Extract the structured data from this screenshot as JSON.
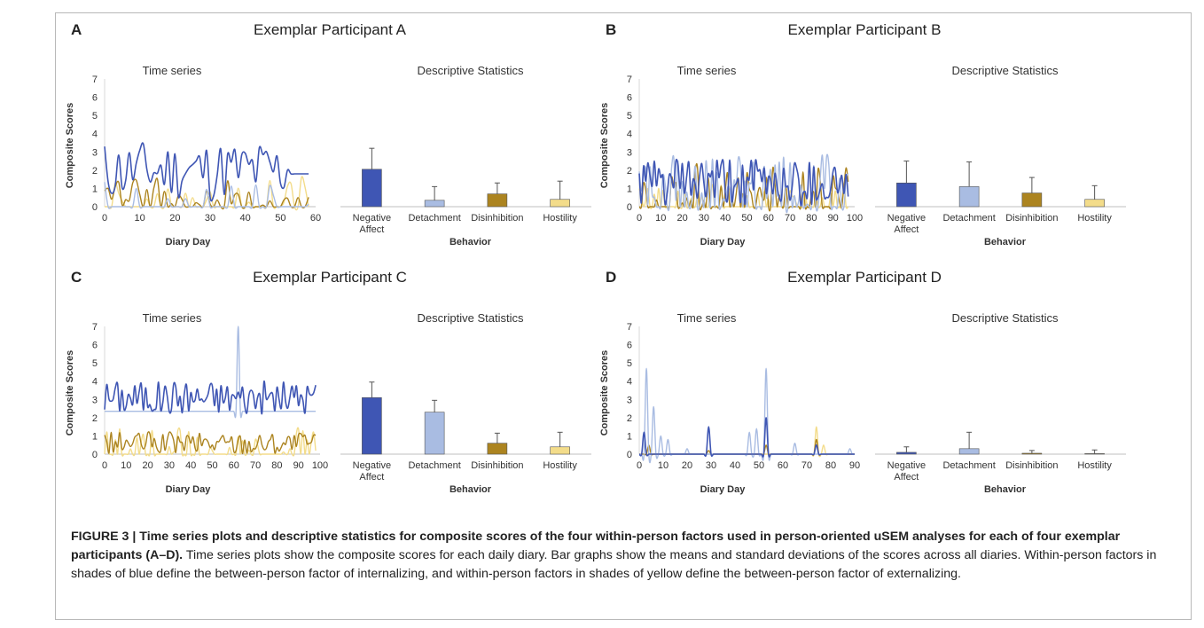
{
  "caption": {
    "label": "FIGURE 3 | Time series plots and descriptive statistics for composite scores of the four within-person factors used in person-oriented uSEM analyses for each of four exemplar participants (A–D).",
    "text": "Time series plots show the composite scores for each daily diary. Bar graphs show the means and standard deviations of the scores across all diaries. Within-person factors in shades of blue define the between-person factor of internalizing, and within-person factors in shades of yellow define the between-person factor of externalizing."
  },
  "colors": {
    "Negative Affect": "#3f56b4",
    "Detachment": "#a9bce2",
    "Disinhibition": "#ac8420",
    "Hostility": "#f3dc8a"
  },
  "panels": [
    {
      "letter": "A",
      "title": "Exemplar Participant A",
      "ts_title": "Time series",
      "ds_title": "Descriptive Statistics",
      "ylabel": "Composite Scores",
      "ts_xlabel": "Diary Day",
      "ds_xlabel": "Behavior",
      "ylim": [
        0,
        7
      ],
      "yticks": [
        "0",
        "1",
        "2",
        "3",
        "4",
        "5",
        "6",
        "7"
      ],
      "xticks": [
        "0",
        "10",
        "20",
        "30",
        "40",
        "50",
        "60"
      ],
      "xmax": 60,
      "days": 58,
      "series_params": {
        "Negative Affect": {
          "base": 2.0,
          "amp": 1.6,
          "seed": 11,
          "flat_from": 53,
          "flat_val": 1.8
        },
        "Detachment": {
          "base": 0.3,
          "amp": 1.2,
          "seed": 23,
          "sparse": 0.72
        },
        "Disinhibition": {
          "base": 0.6,
          "amp": 1.0,
          "seed": 37,
          "sparse": 0.45
        },
        "Hostility": {
          "base": 0.4,
          "amp": 1.4,
          "seed": 51,
          "sparse": 0.75
        }
      }
    },
    {
      "letter": "B",
      "title": "Exemplar Participant B",
      "ts_title": "Time series",
      "ds_title": "Descriptive Statistics",
      "ylabel": "Composite Scores",
      "ts_xlabel": "Diary Day",
      "ds_xlabel": "Behavior",
      "ylim": [
        0,
        7
      ],
      "yticks": [
        "0",
        "1",
        "2",
        "3",
        "4",
        "5",
        "6",
        "7"
      ],
      "xticks": [
        "0",
        "10",
        "20",
        "30",
        "40",
        "50",
        "60",
        "70",
        "80",
        "90",
        "100"
      ],
      "xmax": 100,
      "days": 97,
      "series_params": {
        "Negative Affect": {
          "base": 1.3,
          "amp": 1.3,
          "seed": 61
        },
        "Detachment": {
          "base": 1.1,
          "amp": 1.8,
          "seed": 73,
          "sparse": 0.35
        },
        "Disinhibition": {
          "base": 0.7,
          "amp": 1.5,
          "seed": 89,
          "sparse": 0.4
        },
        "Hostility": {
          "base": 0.4,
          "amp": 1.0,
          "seed": 97,
          "sparse": 0.5
        }
      }
    },
    {
      "letter": "C",
      "title": "Exemplar Participant C",
      "ts_title": "Time series",
      "ds_title": "Descriptive Statistics",
      "ylabel": "Composite Scores",
      "ts_xlabel": "Diary Day",
      "ds_xlabel": "Behavior",
      "ylim": [
        0,
        7
      ],
      "yticks": [
        "0",
        "1",
        "2",
        "3",
        "4",
        "5",
        "6",
        "7"
      ],
      "xticks": [
        "0",
        "10",
        "20",
        "30",
        "40",
        "50",
        "60",
        "70",
        "80",
        "90",
        "100"
      ],
      "xmax": 100,
      "days": 98,
      "series_params": {
        "Negative Affect": {
          "base": 3.1,
          "amp": 0.9,
          "seed": 101
        },
        "Detachment": {
          "base": 2.35,
          "amp": 0.0,
          "seed": 113,
          "spike_day": 62,
          "spike_val": 7.0
        },
        "Disinhibition": {
          "base": 0.6,
          "amp": 0.6,
          "seed": 127
        },
        "Hostility": {
          "base": 0.4,
          "amp": 1.0,
          "seed": 131,
          "sparse": 0.5
        }
      }
    },
    {
      "letter": "D",
      "title": "Exemplar Participant D",
      "ts_title": "Time series",
      "ds_title": "Descriptive Statistics",
      "ylabel": "Composite Scores",
      "ts_xlabel": "Diary Day",
      "ds_xlabel": "Behavior",
      "ylim": [
        0,
        7
      ],
      "yticks": [
        "0",
        "1",
        "2",
        "3",
        "4",
        "5",
        "6",
        "7"
      ],
      "xticks": [
        "0",
        "10",
        "20",
        "30",
        "40",
        "50",
        "60",
        "70",
        "80",
        "90"
      ],
      "xmax": 90,
      "days": 90,
      "series_params": {
        "Negative Affect": {
          "base": 0.0,
          "amp": 0.0,
          "seed": 141,
          "spikes": [
            [
              2,
              1.2
            ],
            [
              29,
              1.5
            ],
            [
              53,
              2.0
            ],
            [
              74,
              0.5
            ]
          ]
        },
        "Detachment": {
          "base": 0.0,
          "amp": 0.0,
          "seed": 151,
          "spikes": [
            [
              3,
              4.7
            ],
            [
              6,
              2.6
            ],
            [
              9,
              1.0
            ],
            [
              12,
              0.8
            ],
            [
              20,
              0.3
            ],
            [
              46,
              1.2
            ],
            [
              49,
              1.4
            ],
            [
              53,
              4.7
            ],
            [
              65,
              0.6
            ],
            [
              88,
              0.3
            ]
          ]
        },
        "Disinhibition": {
          "base": 0.0,
          "amp": 0.0,
          "seed": 161,
          "spikes": [
            [
              4,
              0.5
            ],
            [
              29,
              0.2
            ],
            [
              53,
              0.5
            ],
            [
              74,
              0.8
            ]
          ]
        },
        "Hostility": {
          "base": 0.0,
          "amp": 0.0,
          "seed": 171,
          "spikes": [
            [
              74,
              1.5
            ],
            [
              77,
              0.5
            ]
          ]
        }
      }
    }
  ],
  "chart_data": [
    {
      "type": "bar",
      "title": "Descriptive Statistics",
      "panel": "A",
      "categories": [
        "Negative Affect",
        "Detachment",
        "Disinhibition",
        "Hostility"
      ],
      "values": [
        2.05,
        0.35,
        0.7,
        0.4
      ],
      "sd": [
        1.15,
        0.75,
        0.6,
        1.0
      ],
      "xlabel": "Behavior",
      "ylabel": "Composite Scores",
      "ylim": [
        0,
        7
      ]
    },
    {
      "type": "bar",
      "title": "Descriptive Statistics",
      "panel": "B",
      "categories": [
        "Negative Affect",
        "Detachment",
        "Disinhibition",
        "Hostility"
      ],
      "values": [
        1.3,
        1.1,
        0.75,
        0.4
      ],
      "sd": [
        1.2,
        1.35,
        0.85,
        0.75
      ],
      "xlabel": "Behavior",
      "ylabel": "Composite Scores",
      "ylim": [
        0,
        7
      ]
    },
    {
      "type": "bar",
      "title": "Descriptive Statistics",
      "panel": "C",
      "categories": [
        "Negative Affect",
        "Detachment",
        "Disinhibition",
        "Hostility"
      ],
      "values": [
        3.1,
        2.3,
        0.6,
        0.4
      ],
      "sd": [
        0.85,
        0.65,
        0.55,
        0.8
      ],
      "xlabel": "Behavior",
      "ylabel": "Composite Scores",
      "ylim": [
        0,
        7
      ]
    },
    {
      "type": "bar",
      "title": "Descriptive Statistics",
      "panel": "D",
      "categories": [
        "Negative Affect",
        "Detachment",
        "Disinhibition",
        "Hostility"
      ],
      "values": [
        0.1,
        0.3,
        0.05,
        0.03
      ],
      "sd": [
        0.3,
        0.9,
        0.15,
        0.2
      ],
      "xlabel": "Behavior",
      "ylabel": "Composite Scores",
      "ylim": [
        0,
        7
      ]
    }
  ]
}
